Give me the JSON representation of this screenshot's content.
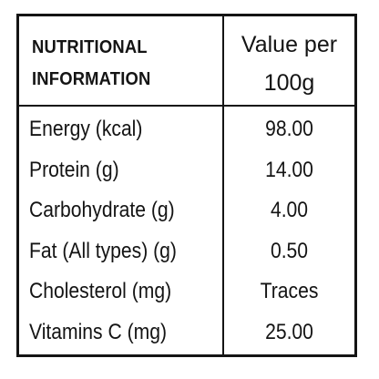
{
  "table": {
    "header": {
      "nutrient_line1": "NUTRITIONAL",
      "nutrient_line2": "INFORMATION",
      "value_line1": "Value per",
      "value_line2": "100g"
    },
    "rows": [
      {
        "nutrient": "Energy (kcal)",
        "value": "98.00"
      },
      {
        "nutrient": "Protein (g)",
        "value": "14.00"
      },
      {
        "nutrient": "Carbohydrate (g)",
        "value": "4.00"
      },
      {
        "nutrient": "Fat (All types) (g)",
        "value": "0.50"
      },
      {
        "nutrient": "Cholesterol (mg)",
        "value": "Traces"
      },
      {
        "nutrient": "Vitamins C (mg)",
        "value": "25.00"
      }
    ]
  }
}
